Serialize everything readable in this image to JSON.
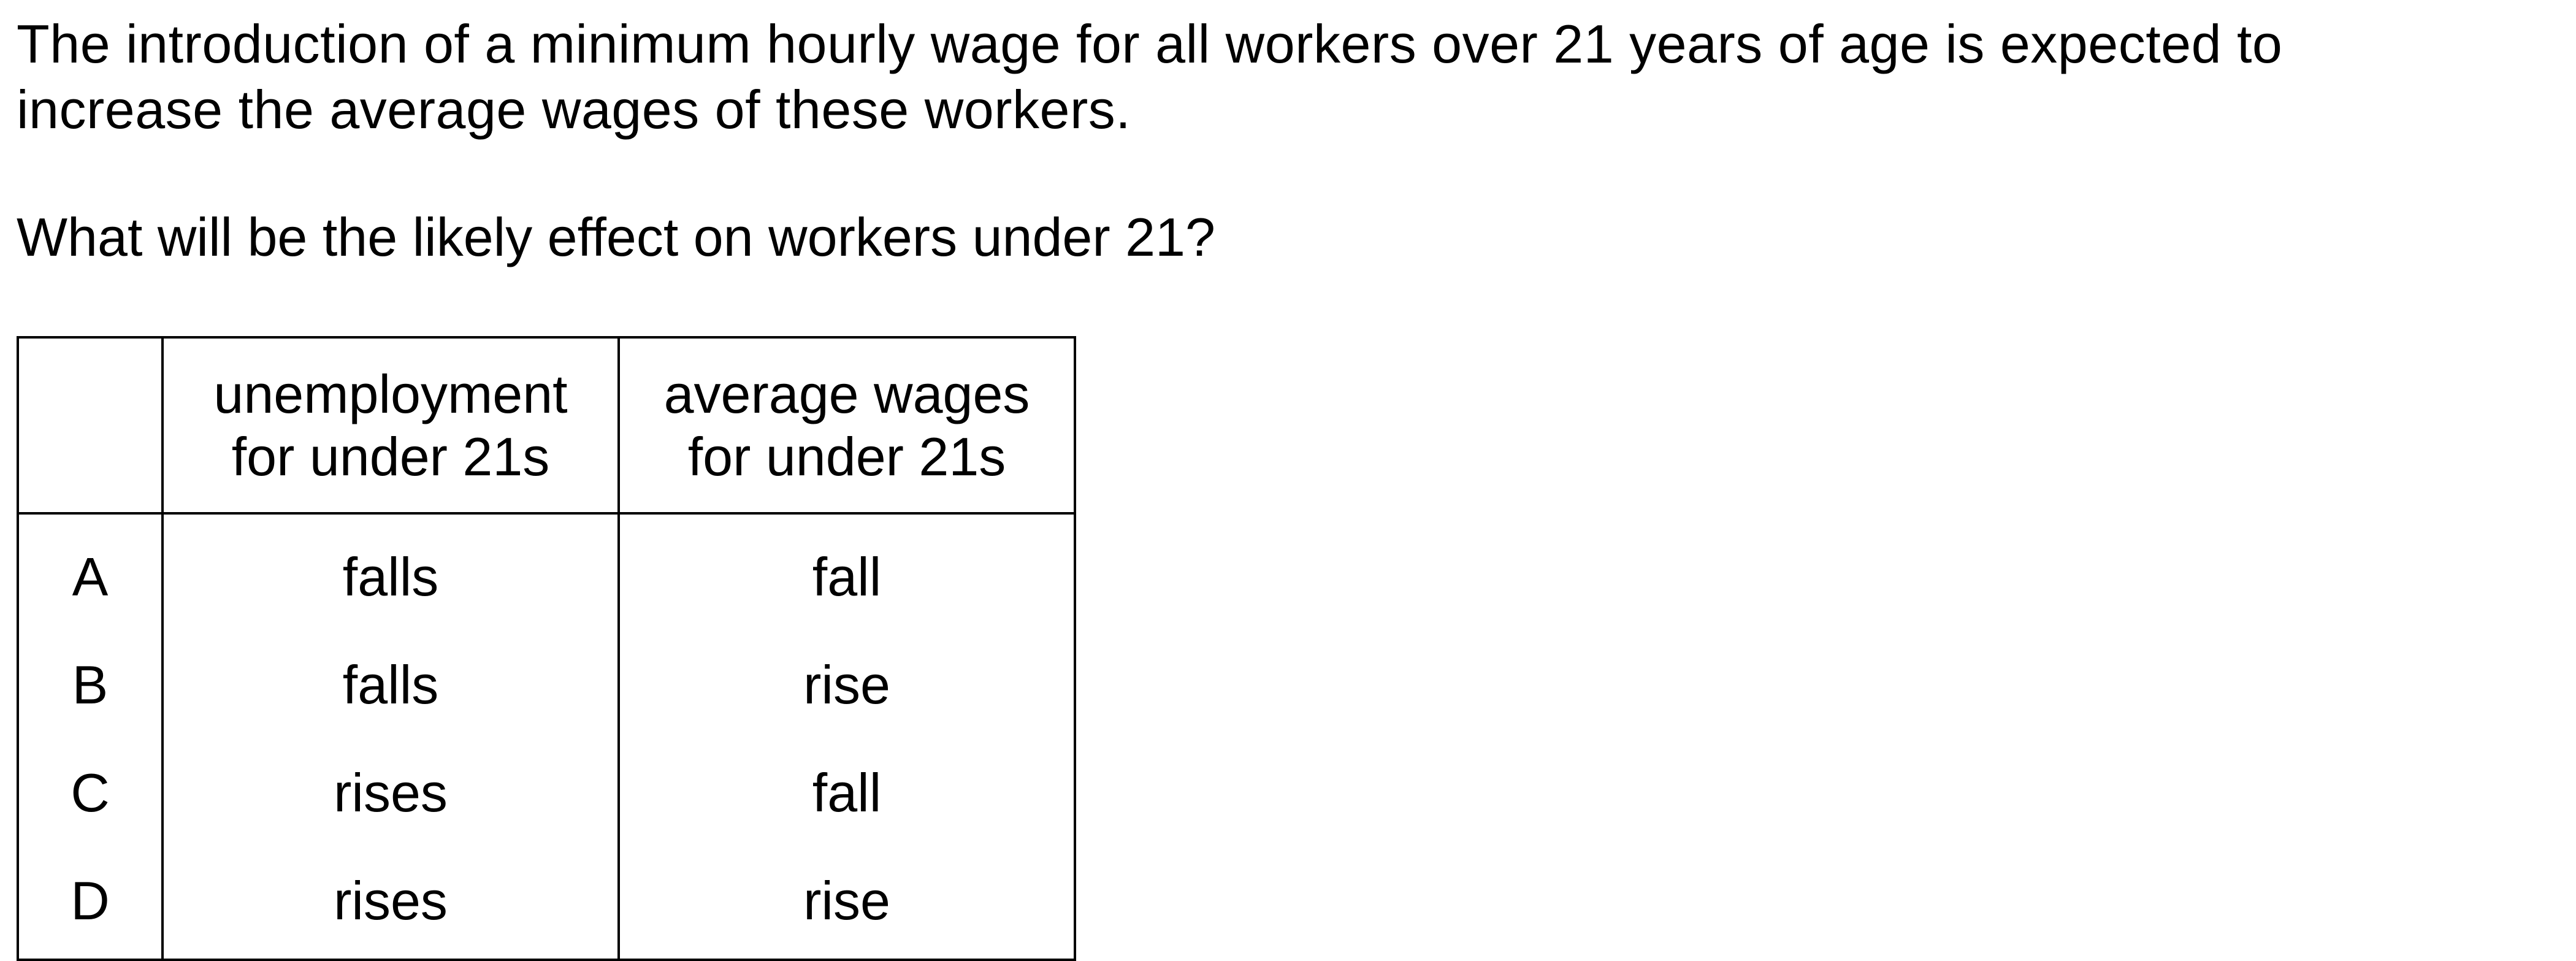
{
  "question": {
    "stem": "The introduction of a minimum hourly wage for all workers over 21 years of age is expected to increase the average wages of these workers.",
    "prompt": "What will be the likely effect on workers under 21?"
  },
  "table": {
    "headers": {
      "letter": "",
      "unemployment": [
        "unemployment",
        "for under 21s"
      ],
      "wages": [
        "average wages",
        "for under 21s"
      ]
    },
    "rows": [
      {
        "letter": "A",
        "unemployment": "falls",
        "wages": "fall"
      },
      {
        "letter": "B",
        "unemployment": "falls",
        "wages": "rise"
      },
      {
        "letter": "C",
        "unemployment": "rises",
        "wages": "fall"
      },
      {
        "letter": "D",
        "unemployment": "rises",
        "wages": "rise"
      }
    ]
  }
}
